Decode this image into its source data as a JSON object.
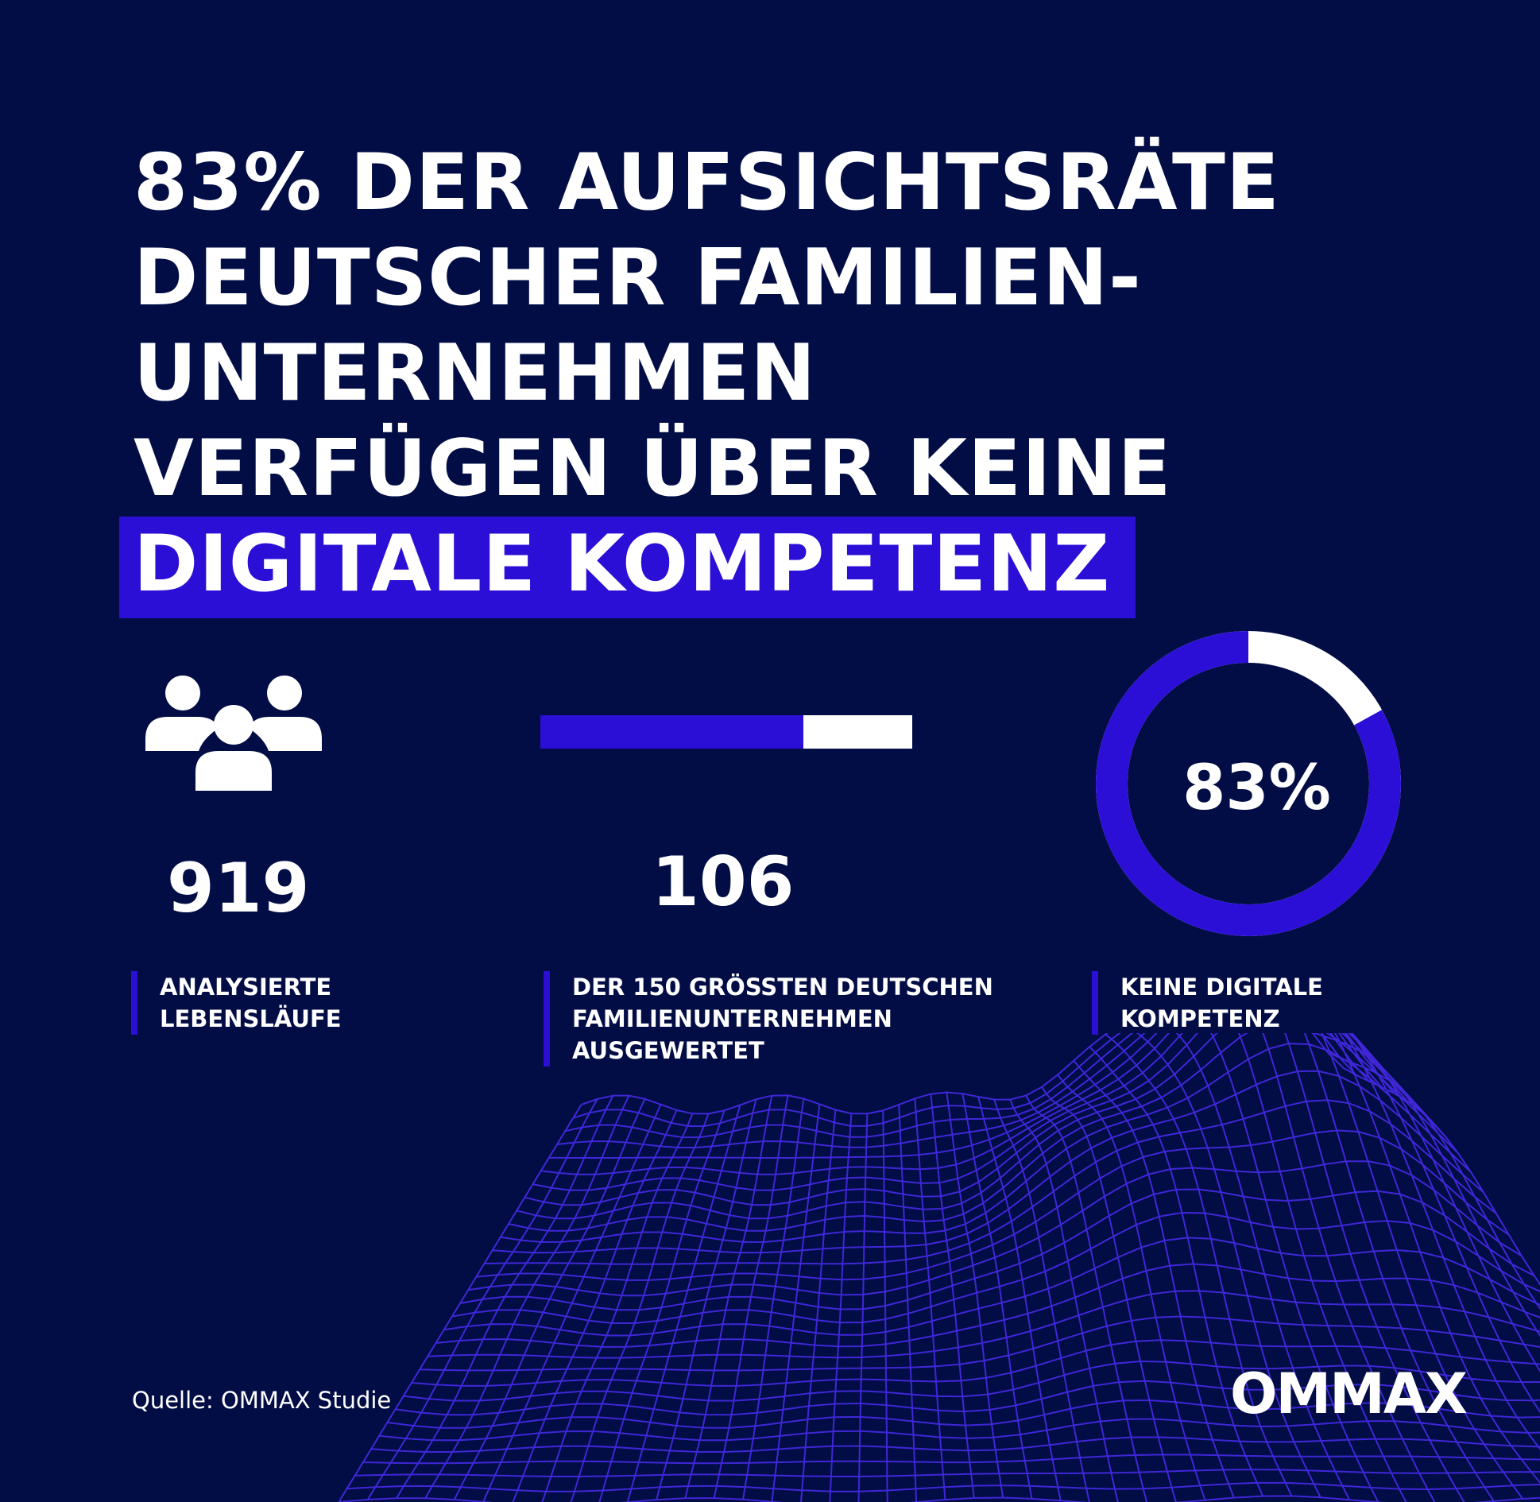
{
  "headline": {
    "lines": [
      "83% DER AUFSICHTSRÄTE",
      "DEUTSCHER FAMILIEN-",
      "UNTERNEHMEN",
      "VERFÜGEN ÜBER KEINE"
    ],
    "highlight": "DIGITALE KOMPETENZ"
  },
  "stats": [
    {
      "value": "919",
      "description_lines": [
        "ANALYSIERTE",
        "LEBENSLÄUFE"
      ],
      "icon": "people-group-icon"
    },
    {
      "value": "106",
      "description_lines": [
        "DER 150 GRÖSSTEN DEUTSCHEN",
        "FAMILIENUNTERNEHMEN",
        "AUSGEWERTET"
      ],
      "bar": {
        "filled": 106,
        "total": 150
      }
    },
    {
      "value": "83%",
      "description_lines": [
        "KEINE DIGITALE",
        "KOMPETENZ"
      ],
      "donut": {
        "percent": 83
      }
    }
  ],
  "source": "Quelle: OMMAX Studie",
  "logo": "OMMAX",
  "colors": {
    "background": "#020d45",
    "accent": "#2c0fd6",
    "text": "#ffffff"
  }
}
